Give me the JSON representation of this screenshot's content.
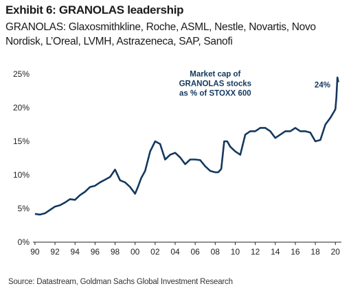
{
  "header": {
    "title": "Exhibit 6: GRANOLAS leadership",
    "subtitle": "GRANOLAS: Glaxosmithkline, Roche, ASML, Nestle, Novartis, Novo Nordisk, L’Oreal, LVMH, Astrazeneca, SAP, Sanofi"
  },
  "footer": {
    "source": "Source: Datastream, Goldman Sachs Global Investment Research"
  },
  "colors": {
    "line": "#13385e",
    "annotation": "#13385e",
    "axis": "#222222"
  },
  "chart_data": {
    "type": "line",
    "title": "",
    "xlabel": "",
    "ylabel": "",
    "ylim": [
      0,
      25
    ],
    "xlim": [
      1989.8,
      2020.6
    ],
    "grid": false,
    "y_ticks": [
      0,
      5,
      10,
      15,
      20,
      25
    ],
    "y_tick_labels": [
      "0%",
      "5%",
      "10%",
      "15%",
      "20%",
      "25%"
    ],
    "x_ticks": [
      1990,
      1992,
      1994,
      1996,
      1998,
      2000,
      2002,
      2004,
      2006,
      2008,
      2010,
      2012,
      2014,
      2016,
      2018,
      2020
    ],
    "x_tick_labels": [
      "90",
      "92",
      "94",
      "96",
      "98",
      "00",
      "02",
      "04",
      "06",
      "08",
      "10",
      "12",
      "14",
      "16",
      "18",
      "20"
    ],
    "annotations": [
      {
        "text_lines": [
          "Market cap of",
          "GRANOLAS stocks",
          "as % of STOXX 600"
        ],
        "x": 2008.0,
        "y": 23.0
      },
      {
        "text_lines": [
          "24%"
        ],
        "x": 2019.5,
        "y": 23.0
      }
    ],
    "series": [
      {
        "name": "",
        "x": [
          1990.0,
          1990.5,
          1991.0,
          1991.5,
          1992.0,
          1992.5,
          1993.0,
          1993.5,
          1994.0,
          1994.5,
          1995.0,
          1995.5,
          1996.0,
          1996.5,
          1997.0,
          1997.5,
          1998.0,
          1998.5,
          1999.0,
          1999.5,
          2000.0,
          2000.3,
          2000.6,
          2001.0,
          2001.5,
          2002.0,
          2002.5,
          2003.0,
          2003.5,
          2004.0,
          2004.5,
          2005.0,
          2005.5,
          2006.0,
          2006.5,
          2007.0,
          2007.5,
          2008.0,
          2008.3,
          2008.6,
          2008.9,
          2009.2,
          2009.5,
          2010.0,
          2010.5,
          2011.0,
          2011.5,
          2012.0,
          2012.5,
          2013.0,
          2013.5,
          2014.0,
          2014.5,
          2015.0,
          2015.5,
          2016.0,
          2016.5,
          2017.0,
          2017.5,
          2018.0,
          2018.5,
          2019.0,
          2019.5,
          2019.9,
          2020.0,
          2020.1,
          2020.2,
          2020.3
        ],
        "values": [
          4.2,
          4.1,
          4.3,
          4.8,
          5.3,
          5.5,
          5.9,
          6.4,
          6.3,
          7.0,
          7.5,
          8.2,
          8.4,
          8.9,
          9.3,
          9.7,
          10.8,
          9.2,
          8.9,
          8.2,
          7.2,
          8.3,
          9.5,
          10.6,
          13.5,
          15.0,
          14.6,
          12.3,
          13.0,
          13.3,
          12.6,
          11.6,
          12.3,
          12.3,
          12.2,
          11.3,
          10.6,
          10.4,
          10.4,
          10.9,
          15.0,
          15.0,
          14.2,
          13.5,
          13.0,
          16.0,
          16.5,
          16.5,
          17.0,
          17.0,
          16.5,
          15.5,
          16.0,
          16.5,
          16.5,
          17.0,
          16.5,
          16.5,
          16.3,
          15.0,
          15.2,
          17.5,
          18.5,
          19.5,
          19.8,
          21.5,
          24.5,
          23.8
        ]
      }
    ]
  }
}
